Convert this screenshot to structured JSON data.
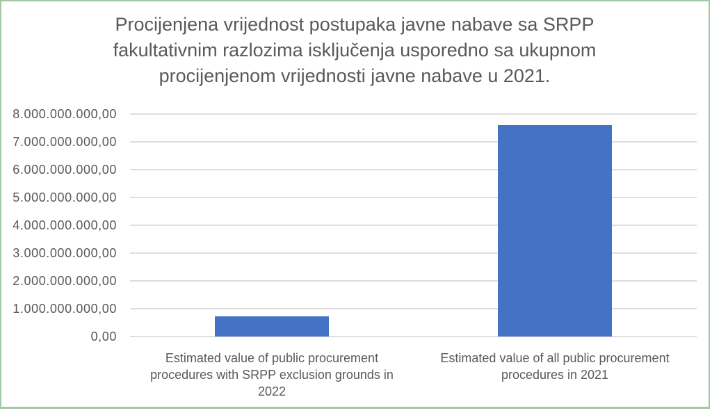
{
  "colors": {
    "bar": "#4472C4",
    "grid": "#DEDEDE",
    "text": "#595959",
    "border": "#A3C8A4",
    "background": "#FFFFFF"
  },
  "chart_data": {
    "type": "bar",
    "title": "Procijenjena vrijednost postupaka javne nabave sa SRPP fakultativnim razlozima isključenja usporedno sa ukupnom procijenjenom vrijednosti javne nabave u 2021.",
    "title_lines": [
      "Procijenjena vrijednost postupaka javne nabave sa SRPP",
      "fakultativnim razlozima isključenja usporedno sa ukupnom",
      "procijenjenom vrijednosti javne nabave u 2021."
    ],
    "categories": [
      "Estimated value of public procurement procedures with SRPP exclusion grounds in 2022",
      "Estimated value of all public procurement procedures in 2021"
    ],
    "category_label_lines": [
      [
        "Estimated value of public procurement",
        "procedures with SRPP exclusion grounds in",
        "2022"
      ],
      [
        "Estimated value of all public procurement",
        "procedures in 2021"
      ]
    ],
    "values": [
      720000000,
      7600000000
    ],
    "ylim": [
      0,
      8000000000
    ],
    "y_tick_step": 1000000000,
    "y_tick_labels": [
      "8.000.000.000,00",
      "7.000.000.000,00",
      "6.000.000.000,00",
      "5.000.000.000,00",
      "4.000.000.000,00",
      "3.000.000.000,00",
      "2.000.000.000,00",
      "1.000.000.000,00",
      "0,00"
    ],
    "xlabel": "",
    "ylabel": "",
    "grid": true,
    "legend": false
  }
}
